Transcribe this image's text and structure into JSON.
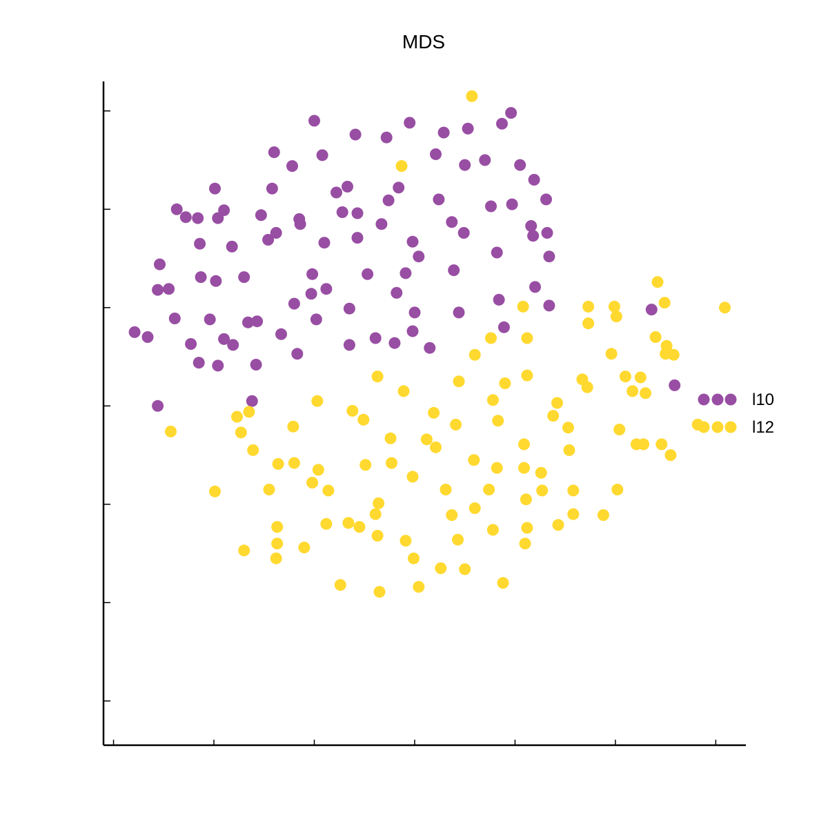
{
  "chart_data": {
    "type": "scatter",
    "title": "MDS",
    "xlabel": "",
    "ylabel": "",
    "xlim": [
      -0.1,
      6.3
    ],
    "ylim": [
      0.55,
      7.3
    ],
    "xticks": [
      0,
      1,
      2,
      3,
      4,
      5,
      6
    ],
    "yticks": [
      1,
      2,
      3,
      4,
      5,
      6,
      7
    ],
    "tick_labels_shown": false,
    "grid": false,
    "legend_position": "right",
    "series": [
      {
        "name": "l10",
        "color": "#984ea3",
        "points": [
          [
            2.0,
            6.9
          ],
          [
            3.96,
            6.98
          ],
          [
            1.6,
            6.58
          ],
          [
            2.08,
            6.55
          ],
          [
            2.41,
            6.76
          ],
          [
            2.72,
            6.73
          ],
          [
            2.95,
            6.88
          ],
          [
            3.29,
            6.78
          ],
          [
            3.53,
            6.82
          ],
          [
            3.87,
            6.87
          ],
          [
            1.78,
            6.44
          ],
          [
            3.21,
            6.56
          ],
          [
            3.5,
            6.45
          ],
          [
            3.7,
            6.5
          ],
          [
            4.05,
            6.45
          ],
          [
            4.19,
            6.3
          ],
          [
            1.01,
            6.21
          ],
          [
            1.58,
            6.21
          ],
          [
            2.22,
            6.17
          ],
          [
            2.33,
            6.23
          ],
          [
            2.84,
            6.22
          ],
          [
            2.74,
            6.09
          ],
          [
            3.24,
            6.1
          ],
          [
            0.63,
            6.0
          ],
          [
            1.1,
            5.99
          ],
          [
            1.47,
            5.94
          ],
          [
            2.28,
            5.97
          ],
          [
            2.43,
            5.96
          ],
          [
            3.76,
            6.03
          ],
          [
            3.97,
            6.05
          ],
          [
            4.31,
            6.1
          ],
          [
            0.72,
            5.92
          ],
          [
            0.84,
            5.91
          ],
          [
            1.04,
            5.91
          ],
          [
            1.85,
            5.9
          ],
          [
            1.86,
            5.85
          ],
          [
            2.67,
            5.85
          ],
          [
            3.37,
            5.87
          ],
          [
            4.16,
            5.83
          ],
          [
            4.32,
            5.76
          ],
          [
            0.86,
            5.65
          ],
          [
            1.18,
            5.62
          ],
          [
            1.54,
            5.69
          ],
          [
            1.62,
            5.76
          ],
          [
            2.1,
            5.66
          ],
          [
            2.43,
            5.71
          ],
          [
            2.98,
            5.67
          ],
          [
            3.49,
            5.76
          ],
          [
            3.82,
            5.56
          ],
          [
            4.18,
            5.73
          ],
          [
            4.34,
            5.52
          ],
          [
            0.46,
            5.44
          ],
          [
            3.04,
            5.52
          ],
          [
            0.87,
            5.31
          ],
          [
            1.02,
            5.27
          ],
          [
            1.3,
            5.31
          ],
          [
            0.96,
            4.88
          ],
          [
            1.98,
            5.34
          ],
          [
            2.53,
            5.34
          ],
          [
            2.91,
            5.35
          ],
          [
            3.39,
            5.38
          ],
          [
            0.44,
            5.18
          ],
          [
            0.55,
            5.19
          ],
          [
            2.12,
            5.19
          ],
          [
            1.97,
            5.14
          ],
          [
            2.82,
            5.15
          ],
          [
            4.2,
            5.21
          ],
          [
            4.34,
            5.02
          ],
          [
            1.8,
            5.04
          ],
          [
            2.35,
            4.99
          ],
          [
            3.0,
            4.95
          ],
          [
            3.44,
            4.95
          ],
          [
            3.84,
            5.08
          ],
          [
            5.36,
            4.98
          ],
          [
            0.61,
            4.89
          ],
          [
            1.34,
            4.85
          ],
          [
            1.43,
            4.86
          ],
          [
            2.02,
            4.88
          ],
          [
            2.98,
            4.76
          ],
          [
            3.89,
            4.8
          ],
          [
            0.21,
            4.75
          ],
          [
            1.1,
            4.68
          ],
          [
            1.67,
            4.73
          ],
          [
            0.34,
            4.7
          ],
          [
            0.77,
            4.63
          ],
          [
            1.19,
            4.62
          ],
          [
            2.35,
            4.62
          ],
          [
            2.61,
            4.69
          ],
          [
            2.8,
            4.64
          ],
          [
            3.15,
            4.59
          ],
          [
            1.83,
            4.53
          ],
          [
            0.85,
            4.44
          ],
          [
            1.04,
            4.41
          ],
          [
            1.42,
            4.42
          ],
          [
            5.59,
            4.21
          ],
          [
            0.44,
            4.0
          ],
          [
            1.38,
            4.05
          ]
        ]
      },
      {
        "name": "l12",
        "color": "#ffd92f",
        "points": [
          [
            3.57,
            7.15
          ],
          [
            2.87,
            6.44
          ],
          [
            5.42,
            5.26
          ],
          [
            6.09,
            5.0
          ],
          [
            5.49,
            5.05
          ],
          [
            4.08,
            5.01
          ],
          [
            4.73,
            5.01
          ],
          [
            4.99,
            5.01
          ],
          [
            5.01,
            4.91
          ],
          [
            4.73,
            4.84
          ],
          [
            3.76,
            4.69
          ],
          [
            4.12,
            4.69
          ],
          [
            5.4,
            4.7
          ],
          [
            5.51,
            4.61
          ],
          [
            3.6,
            4.52
          ],
          [
            4.96,
            4.53
          ],
          [
            5.5,
            4.53
          ],
          [
            5.58,
            4.52
          ],
          [
            4.12,
            4.31
          ],
          [
            5.1,
            4.3
          ],
          [
            2.63,
            4.3
          ],
          [
            3.44,
            4.25
          ],
          [
            4.67,
            4.27
          ],
          [
            5.25,
            4.29
          ],
          [
            2.89,
            4.15
          ],
          [
            3.9,
            4.23
          ],
          [
            4.72,
            4.19
          ],
          [
            5.3,
            4.13
          ],
          [
            3.78,
            4.06
          ],
          [
            2.03,
            4.05
          ],
          [
            5.17,
            4.15
          ],
          [
            4.42,
            4.03
          ],
          [
            3.19,
            3.93
          ],
          [
            1.23,
            3.89
          ],
          [
            1.35,
            3.94
          ],
          [
            2.38,
            3.95
          ],
          [
            2.49,
            3.86
          ],
          [
            4.38,
            3.9
          ],
          [
            3.41,
            3.81
          ],
          [
            3.83,
            3.85
          ],
          [
            0.57,
            3.74
          ],
          [
            1.79,
            3.79
          ],
          [
            1.27,
            3.73
          ],
          [
            4.53,
            3.78
          ],
          [
            5.82,
            3.81
          ],
          [
            5.04,
            3.76
          ],
          [
            2.76,
            3.67
          ],
          [
            3.12,
            3.66
          ],
          [
            4.09,
            3.61
          ],
          [
            4.54,
            3.55
          ],
          [
            5.21,
            3.61
          ],
          [
            5.28,
            3.61
          ],
          [
            5.46,
            3.61
          ],
          [
            1.39,
            3.55
          ],
          [
            3.21,
            3.58
          ],
          [
            1.64,
            3.41
          ],
          [
            1.8,
            3.42
          ],
          [
            2.51,
            3.4
          ],
          [
            2.77,
            3.42
          ],
          [
            3.59,
            3.45
          ],
          [
            2.04,
            3.35
          ],
          [
            3.82,
            3.37
          ],
          [
            4.09,
            3.37
          ],
          [
            4.26,
            3.32
          ],
          [
            5.55,
            3.5
          ],
          [
            1.98,
            3.22
          ],
          [
            2.14,
            3.14
          ],
          [
            2.98,
            3.28
          ],
          [
            3.31,
            3.15
          ],
          [
            3.74,
            3.15
          ],
          [
            1.55,
            3.15
          ],
          [
            1.01,
            3.13
          ],
          [
            4.11,
            3.05
          ],
          [
            4.27,
            3.14
          ],
          [
            4.58,
            3.14
          ],
          [
            5.02,
            3.15
          ],
          [
            2.64,
            3.01
          ],
          [
            2.61,
            2.9
          ],
          [
            3.37,
            2.89
          ],
          [
            3.6,
            2.96
          ],
          [
            1.63,
            2.77
          ],
          [
            2.12,
            2.8
          ],
          [
            2.34,
            2.81
          ],
          [
            2.45,
            2.77
          ],
          [
            3.78,
            2.74
          ],
          [
            4.12,
            2.76
          ],
          [
            4.43,
            2.79
          ],
          [
            4.58,
            2.9
          ],
          [
            4.88,
            2.89
          ],
          [
            1.63,
            2.6
          ],
          [
            1.9,
            2.56
          ],
          [
            2.63,
            2.68
          ],
          [
            2.91,
            2.63
          ],
          [
            3.43,
            2.64
          ],
          [
            4.1,
            2.6
          ],
          [
            1.62,
            2.45
          ],
          [
            2.99,
            2.45
          ],
          [
            3.26,
            2.35
          ],
          [
            3.5,
            2.34
          ],
          [
            1.3,
            2.53
          ],
          [
            2.26,
            2.18
          ],
          [
            2.65,
            2.11
          ],
          [
            3.04,
            2.16
          ],
          [
            3.88,
            2.2
          ]
        ]
      }
    ]
  }
}
